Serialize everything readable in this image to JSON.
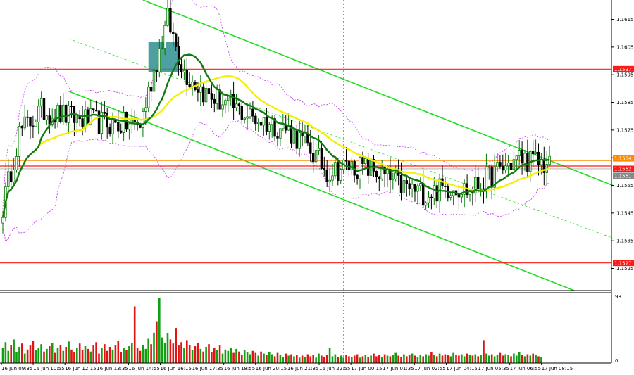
{
  "chart_data": {
    "type": "candlestick",
    "symbol_colors": {
      "bull": "#007a00",
      "bear": "#000000",
      "ma_fast": "#117a11",
      "ma_slow": "#f5f000",
      "channel": "#22dd22",
      "level": "#ff1a1a",
      "bollinger": "#bb33ee",
      "highlight": "#2f8f8f"
    },
    "price_axis": {
      "ylim": [
        1.1517,
        1.1622
      ],
      "ticks": [
        "1.1615",
        "1.1605",
        "1.1595",
        "1.1585",
        "1.1575",
        "1.1565",
        "1.1555",
        "1.1545",
        "1.1535",
        "1.1525"
      ]
    },
    "time_axis": {
      "labels": [
        "16 Jun 09:35",
        "16 Jun 10:55",
        "16 Jun 12:15",
        "16 Jun 13:35",
        "16 Jun 14:55",
        "16 Jun 16:15",
        "16 Jun 17:35",
        "16 Jun 18:55",
        "16 Jun 20:15",
        "16 Jun 21:35",
        "16 Jun 22:55",
        "17 Jun 00:15",
        "17 Jun 01:35",
        "17 Jun 02:55",
        "17 Jun 04:15",
        "17 Jun 05:35",
        "17 Jun 06:55",
        "17 Jun 08:15"
      ]
    },
    "levels": [
      {
        "price": 1.1597,
        "label": "1.1597",
        "color": "#ff1a1a"
      },
      {
        "price": 1.1564,
        "label": "1.1564",
        "color": "#ff8c00"
      },
      {
        "price": 1.1562,
        "label": "1.1562",
        "color": "#ff1a1a"
      },
      {
        "price": 1.1561,
        "label": "1.1561",
        "color": "#888888"
      },
      {
        "price": 1.1527,
        "label": "1.1527",
        "color": "#ff1a1a"
      }
    ],
    "volume_axis": {
      "max_label": "98",
      "min_label": "0",
      "ymax": 98
    },
    "key_points": [
      [
        0,
        1.1547
      ],
      [
        6,
        1.1574
      ],
      [
        14,
        1.1582
      ],
      [
        28,
        1.1579
      ],
      [
        40,
        1.1577
      ],
      [
        50,
        1.1577
      ],
      [
        56,
        1.16
      ],
      [
        60,
        1.1615
      ],
      [
        66,
        1.1596
      ],
      [
        74,
        1.1588
      ],
      [
        90,
        1.158
      ],
      [
        104,
        1.1575
      ],
      [
        112,
        1.1568
      ],
      [
        118,
        1.156
      ],
      [
        126,
        1.1562
      ],
      [
        134,
        1.1561
      ],
      [
        144,
        1.1555
      ],
      [
        154,
        1.1552
      ],
      [
        164,
        1.1555
      ],
      [
        170,
        1.1553
      ],
      [
        180,
        1.156
      ],
      [
        188,
        1.1565
      ],
      [
        196,
        1.1563
      ],
      [
        199,
        1.1562
      ]
    ],
    "volumes": [
      22,
      31,
      18,
      27,
      35,
      16,
      24,
      29,
      14,
      20,
      26,
      33,
      19,
      23,
      28,
      17,
      21,
      25,
      30,
      15,
      22,
      27,
      18,
      24,
      32,
      20,
      16,
      23,
      29,
      19,
      25,
      21,
      17,
      26,
      31,
      14,
      22,
      28,
      18,
      24,
      20,
      27,
      33,
      16,
      22,
      19,
      25,
      30,
      84,
      23,
      18,
      27,
      21,
      36,
      28,
      45,
      62,
      97,
      38,
      30,
      44,
      35,
      29,
      52,
      26,
      31,
      22,
      34,
      27,
      19,
      25,
      30,
      21,
      17,
      24,
      28,
      16,
      22,
      19,
      26,
      14,
      20,
      18,
      23,
      15,
      21,
      17,
      12,
      19,
      16,
      13,
      18,
      15,
      11,
      17,
      14,
      12,
      16,
      13,
      10,
      15,
      12,
      9,
      14,
      11,
      13,
      10,
      12,
      8,
      11,
      9,
      13,
      10,
      12,
      8,
      14,
      11,
      9,
      12,
      22,
      10,
      13,
      9,
      11,
      8,
      12,
      10,
      9,
      11,
      13,
      8,
      10,
      12,
      9,
      11,
      14,
      10,
      12,
      9,
      13,
      11,
      10,
      12,
      15,
      11,
      9,
      13,
      10,
      12,
      14,
      11,
      9,
      12,
      10,
      13,
      11,
      16,
      12,
      10,
      14,
      11,
      13,
      12,
      10,
      15,
      12,
      11,
      13,
      10,
      14,
      12,
      11,
      13,
      10,
      12,
      34,
      14,
      11,
      13,
      10,
      12,
      15,
      11,
      13,
      12,
      10,
      14,
      11,
      16,
      12,
      10,
      13,
      11,
      14,
      12,
      10,
      9
    ]
  }
}
